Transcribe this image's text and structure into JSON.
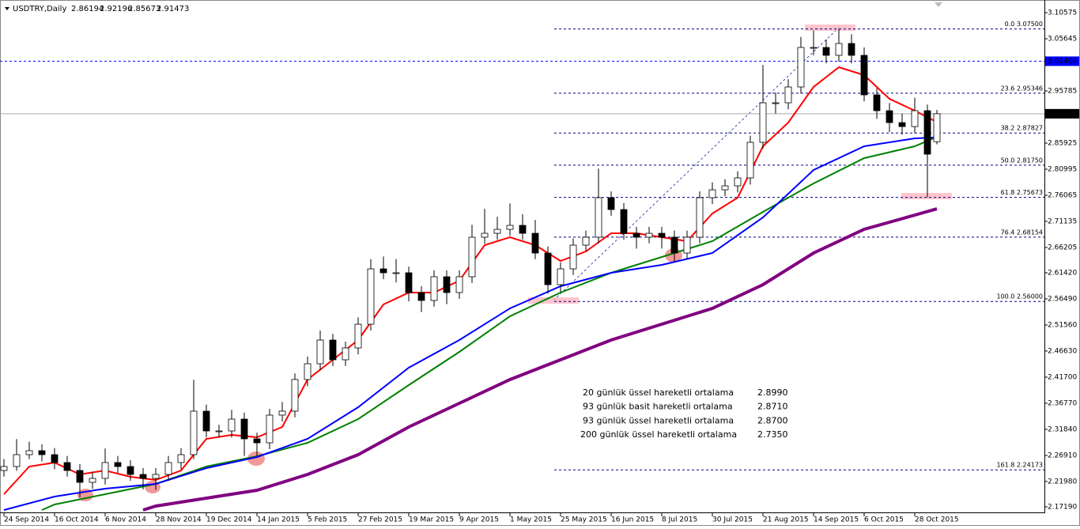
{
  "chart_data": {
    "type": "candlestick",
    "header": {
      "symbol": "USDTRY,Daily",
      "open": 2.86194,
      "high": 2.92196,
      "low": 2.85673,
      "close": 2.91473
    },
    "xlim": [
      -1.25,
      329
    ],
    "ylim": [
      2.1614,
      3.1222
    ],
    "xticks": [
      {
        "value": 0,
        "label": "24 Sep 2014"
      },
      {
        "value": 16,
        "label": "16 Oct 2014"
      },
      {
        "value": 32,
        "label": "6 Nov 2014"
      },
      {
        "value": 48,
        "label": "28 Nov 2014"
      },
      {
        "value": 64,
        "label": "19 Dec 2014"
      },
      {
        "value": 80,
        "label": "14 Jan 2015"
      },
      {
        "value": 96,
        "label": "5 Feb 2015"
      },
      {
        "value": 112,
        "label": "27 Feb 2015"
      },
      {
        "value": 128,
        "label": "19 Mar 2015"
      },
      {
        "value": 144,
        "label": "9 Apr 2015"
      },
      {
        "value": 160,
        "label": "1 May 2015"
      },
      {
        "value": 176,
        "label": "25 May 2015"
      },
      {
        "value": 192,
        "label": "16 Jun 2015"
      },
      {
        "value": 208,
        "label": "8 Jul 2015"
      },
      {
        "value": 224,
        "label": "30 Jul 2015"
      },
      {
        "value": 240,
        "label": "21 Aug 2015"
      },
      {
        "value": 256,
        "label": "14 Sep 2015"
      },
      {
        "value": 272,
        "label": "6 Oct 2015"
      },
      {
        "value": 288,
        "label": "28 Oct 2015"
      }
    ],
    "yticks": [
      {
        "value": 3.10575,
        "label": "3.10575"
      },
      {
        "value": 3.05645,
        "label": "3.05645"
      },
      {
        "value": 2.95785,
        "label": "2.95785"
      },
      {
        "value": 2.85925,
        "label": "2.85925"
      },
      {
        "value": 2.80995,
        "label": "2.80995"
      },
      {
        "value": 2.76065,
        "label": "2.76065"
      },
      {
        "value": 2.71135,
        "label": "2.71135"
      },
      {
        "value": 2.66205,
        "label": "2.66205"
      },
      {
        "value": 2.6142,
        "label": "2.61420"
      },
      {
        "value": 2.5649,
        "label": "2.56490"
      },
      {
        "value": 2.5156,
        "label": "2.51560"
      },
      {
        "value": 2.4663,
        "label": "2.46630"
      },
      {
        "value": 2.417,
        "label": "2.41700"
      },
      {
        "value": 2.3677,
        "label": "2.36770"
      },
      {
        "value": 2.3184,
        "label": "2.31840"
      },
      {
        "value": 2.2691,
        "label": "2.26910"
      },
      {
        "value": 2.2198,
        "label": "2.21980"
      },
      {
        "value": 2.1719,
        "label": "2.17190"
      }
    ],
    "candles": {
      "x": [
        0,
        4,
        8,
        12,
        16,
        20,
        24,
        28,
        32,
        36,
        40,
        44,
        48,
        52,
        56,
        60,
        64,
        68,
        72,
        76,
        80,
        84,
        88,
        92,
        96,
        100,
        104,
        108,
        112,
        116,
        120,
        124,
        128,
        132,
        136,
        140,
        144,
        148,
        152,
        156,
        160,
        164,
        168,
        172,
        176,
        180,
        184,
        188,
        192,
        196,
        200,
        204,
        208,
        212,
        216,
        220,
        224,
        228,
        232,
        236,
        240,
        244,
        248,
        252,
        256,
        260,
        264,
        268,
        272,
        276,
        280,
        284,
        288,
        292,
        295
      ],
      "open": [
        2.2406,
        2.2481,
        2.2705,
        2.278,
        2.2705,
        2.2556,
        2.2406,
        2.2182,
        2.2257,
        2.2556,
        2.2481,
        2.2331,
        2.2257,
        2.2331,
        2.2556,
        2.2705,
        2.3527,
        2.3153,
        2.3153,
        2.3377,
        2.3004,
        2.2929,
        2.3452,
        2.3527,
        2.4125,
        2.4423,
        2.4871,
        2.4498,
        2.4722,
        2.517,
        2.6216,
        2.6142,
        2.6142,
        2.5768,
        2.5619,
        2.6067,
        2.5768,
        2.6067,
        2.6814,
        2.6888,
        2.6963,
        2.7038,
        2.6888,
        2.6515,
        2.5917,
        2.6216,
        2.6664,
        2.6814,
        2.7561,
        2.7337,
        2.6888,
        2.6814,
        2.6888,
        2.6814,
        2.6515,
        2.6814,
        2.7561,
        2.771,
        2.7785,
        2.7935,
        2.8607,
        2.9354,
        2.9354,
        2.9653,
        3.04,
        3.04,
        3.0251,
        3.0475,
        3.0251,
        2.9504,
        2.9205,
        2.898,
        2.8905,
        2.9205,
        2.8619
      ],
      "high": [
        2.262,
        2.3,
        2.295,
        2.29,
        2.283,
        2.268,
        2.253,
        2.238,
        2.282,
        2.268,
        2.26,
        2.245,
        2.245,
        2.268,
        2.283,
        2.412,
        2.365,
        2.327,
        2.355,
        2.35,
        2.312,
        2.357,
        2.37,
        2.424,
        2.456,
        2.505,
        2.499,
        2.484,
        2.53,
        2.64,
        2.645,
        2.64,
        2.626,
        2.589,
        2.619,
        2.619,
        2.619,
        2.705,
        2.735,
        2.72,
        2.745,
        2.725,
        2.714,
        2.664,
        2.634,
        2.679,
        2.694,
        2.811,
        2.768,
        2.746,
        2.701,
        2.701,
        2.701,
        2.694,
        2.694,
        2.768,
        2.785,
        2.791,
        2.806,
        2.873,
        3.007,
        2.955,
        2.98,
        3.06,
        3.072,
        3.055,
        3.075,
        3.065,
        3.04,
        2.963,
        2.935,
        2.915,
        2.945,
        2.932,
        2.922
      ],
      "low": [
        2.229,
        2.24,
        2.262,
        2.258,
        2.243,
        2.229,
        2.19,
        2.206,
        2.214,
        2.236,
        2.221,
        2.205,
        2.204,
        2.221,
        2.243,
        2.262,
        2.303,
        2.303,
        2.303,
        2.268,
        2.268,
        2.281,
        2.333,
        2.341,
        2.4,
        2.43,
        2.438,
        2.438,
        2.46,
        2.505,
        2.602,
        2.596,
        2.56,
        2.54,
        2.55,
        2.555,
        2.565,
        2.595,
        2.669,
        2.677,
        2.684,
        2.677,
        2.64,
        2.575,
        2.578,
        2.61,
        2.655,
        2.67,
        2.722,
        2.677,
        2.66,
        2.67,
        2.66,
        2.635,
        2.64,
        2.67,
        2.744,
        2.759,
        2.766,
        2.781,
        2.849,
        2.915,
        2.923,
        2.953,
        3.025,
        3.01,
        3.013,
        3.01,
        2.938,
        2.905,
        2.88,
        2.875,
        2.878,
        2.757,
        2.857
      ],
      "close": [
        2.2481,
        2.2705,
        2.278,
        2.2705,
        2.2556,
        2.2406,
        2.2182,
        2.2257,
        2.2556,
        2.2481,
        2.2331,
        2.2257,
        2.2331,
        2.2556,
        2.2705,
        2.3527,
        2.3153,
        2.3153,
        2.3377,
        2.3004,
        2.2929,
        2.3452,
        2.3527,
        2.4125,
        2.4423,
        2.4871,
        2.4498,
        2.4722,
        2.517,
        2.6216,
        2.6142,
        2.6142,
        2.5768,
        2.5619,
        2.6067,
        2.5768,
        2.6067,
        2.6814,
        2.6888,
        2.6963,
        2.7038,
        2.6888,
        2.6515,
        2.5917,
        2.6216,
        2.6664,
        2.6814,
        2.7561,
        2.7337,
        2.6888,
        2.6814,
        2.6888,
        2.6814,
        2.6515,
        2.6814,
        2.7561,
        2.771,
        2.7785,
        2.7935,
        2.8607,
        2.9354,
        2.9354,
        2.9653,
        3.04,
        3.04,
        3.0251,
        3.0475,
        3.0251,
        2.9504,
        2.9205,
        2.898,
        2.8905,
        2.9205,
        2.8383,
        2.9147
      ]
    },
    "series": [
      {
        "name": "20 günlük üssel hareketli ortalama",
        "color": "#ff0000",
        "width": 2,
        "legend_value": {
          "value": 2.899,
          "label": "2.8990"
        },
        "x": [
          0,
          8,
          16,
          24,
          32,
          40,
          48,
          56,
          64,
          72,
          80,
          88,
          96,
          104,
          112,
          120,
          128,
          136,
          144,
          152,
          160,
          168,
          176,
          184,
          192,
          200,
          208,
          216,
          224,
          232,
          240,
          248,
          256,
          264,
          272,
          280,
          288,
          295
        ],
        "values": [
          2.1958,
          2.2481,
          2.2556,
          2.2331,
          2.2406,
          2.2287,
          2.2227,
          2.2406,
          2.3004,
          2.3079,
          2.3034,
          2.3228,
          2.4125,
          2.4498,
          2.4871,
          2.5544,
          2.5768,
          2.5768,
          2.5992,
          2.6664,
          2.6814,
          2.6664,
          2.6366,
          2.6545,
          2.6888,
          2.6888,
          2.6814,
          2.6739,
          2.7262,
          2.7561,
          2.8532,
          2.898,
          2.9653,
          3.0027,
          2.9877,
          2.9429,
          2.9205,
          2.899
        ]
      },
      {
        "name": "93 günlük basit hareketli ortalama",
        "color": "#008000",
        "width": 2,
        "legend_value": {
          "value": 2.871,
          "label": "2.8710"
        },
        "x": [
          12,
          16,
          32,
          48,
          64,
          80,
          96,
          112,
          128,
          144,
          160,
          176,
          192,
          208,
          224,
          240,
          256,
          272,
          288,
          295
        ],
        "values": [
          2.1659,
          2.1764,
          2.1958,
          2.2152,
          2.2481,
          2.2675,
          2.2929,
          2.3377,
          2.402,
          2.4647,
          2.532,
          2.5768,
          2.6142,
          2.644,
          2.6739,
          2.7292,
          2.783,
          2.8308,
          2.8532,
          2.871
        ]
      },
      {
        "name": "93 günlük üssel hareketli ortalama",
        "color": "#0000ff",
        "width": 2,
        "legend_value": {
          "value": 2.87,
          "label": "2.8700"
        },
        "x": [
          0,
          16,
          32,
          48,
          64,
          80,
          96,
          112,
          128,
          144,
          160,
          176,
          192,
          208,
          224,
          240,
          256,
          272,
          288,
          295
        ],
        "values": [
          2.1659,
          2.1913,
          2.2062,
          2.2152,
          2.2451,
          2.266,
          2.3004,
          2.3601,
          2.4348,
          2.4871,
          2.5469,
          2.5887,
          2.6142,
          2.6291,
          2.6515,
          2.7187,
          2.8084,
          2.8532,
          2.8682,
          2.87
        ]
      },
      {
        "name": "200 günlük üssel hareketli ortalama",
        "color": "#800080",
        "width": 4,
        "legend_value": {
          "value": 2.735,
          "label": "2.7350"
        },
        "x": [
          44,
          48,
          64,
          80,
          96,
          112,
          128,
          144,
          160,
          176,
          192,
          208,
          224,
          240,
          256,
          272,
          288,
          295
        ],
        "values": [
          2.1659,
          2.1734,
          2.1883,
          2.2033,
          2.2331,
          2.2705,
          2.3228,
          2.3676,
          2.4125,
          2.4498,
          2.4871,
          2.517,
          2.5469,
          2.5917,
          2.6515,
          2.6963,
          2.7232,
          2.735
        ]
      }
    ],
    "fibonacci": {
      "color": "#000080",
      "from_x": 174,
      "levels": [
        {
          "value": 3.075,
          "label": "0.0 3.07500"
        },
        {
          "value": 2.95346,
          "label": "23.6 2.95346"
        },
        {
          "value": 2.87827,
          "label": "38.2 2.87827"
        },
        {
          "value": 2.8175,
          "label": "50.0 2.81750"
        },
        {
          "value": 2.75673,
          "label": "61.8 2.75673"
        },
        {
          "value": 2.68154,
          "label": "76.4 2.68154"
        },
        {
          "value": 2.56,
          "label": "100.0 2.56000"
        },
        {
          "value": 2.24173,
          "label": "161.8 2.24173"
        }
      ]
    },
    "price_line": {
      "value": 3.014,
      "label": "3.01400",
      "color": "#0000ff"
    },
    "current_price": {
      "value": 2.91473,
      "label": "2.91473"
    }
  }
}
